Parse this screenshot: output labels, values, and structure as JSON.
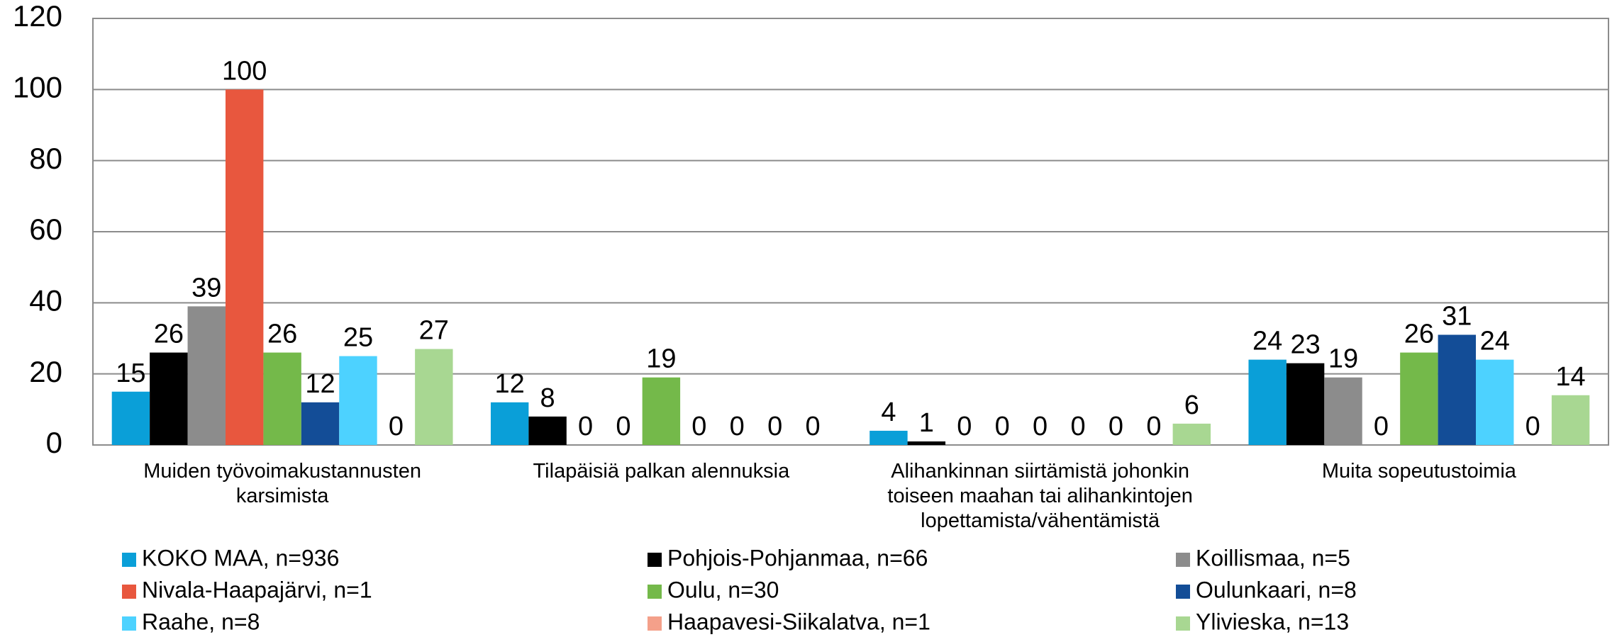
{
  "chart_data": {
    "type": "bar",
    "categories": [
      "Muiden työvoimakustannusten karsimista",
      "Tilapäisiä palkan alennuksia",
      "Alihankinnan siirtämistä johonkin toiseen maahan tai alihankintojen lopettamista/vähentämistä",
      "Muita sopeutustoimia"
    ],
    "series": [
      {
        "name": "KOKO MAA, n=936",
        "color": "#0a9fd8",
        "values": [
          15,
          12,
          4,
          24
        ]
      },
      {
        "name": "Pohjois-Pohjanmaa, n=66",
        "color": "#000000",
        "values": [
          26,
          8,
          1,
          23
        ]
      },
      {
        "name": "Koillismaa, n=5",
        "color": "#8c8c8c",
        "values": [
          39,
          0,
          0,
          19
        ]
      },
      {
        "name": "Nivala-Haapajärvi, n=1",
        "color": "#e8573e",
        "values": [
          100,
          0,
          0,
          0
        ]
      },
      {
        "name": "Oulu, n=30",
        "color": "#74b94a",
        "values": [
          26,
          19,
          0,
          26
        ]
      },
      {
        "name": "Oulunkaari, n=8",
        "color": "#134d97",
        "values": [
          12,
          0,
          0,
          31
        ]
      },
      {
        "name": "Raahe, n=8",
        "color": "#4dd2ff",
        "values": [
          25,
          0,
          0,
          24
        ]
      },
      {
        "name": "Haapavesi-Siikalatva, n=1",
        "color": "#f4a08a",
        "values": [
          0,
          0,
          0,
          0
        ]
      },
      {
        "name": "Ylivieska, n=13",
        "color": "#a8d792",
        "values": [
          27,
          0,
          6,
          14
        ]
      }
    ],
    "ylim": [
      0,
      120
    ],
    "yticks": [
      0,
      20,
      40,
      60,
      80,
      100,
      120
    ],
    "grid": true
  }
}
